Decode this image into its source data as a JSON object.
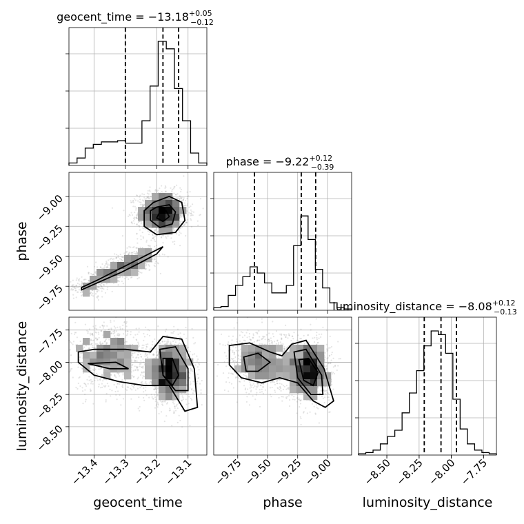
{
  "chart_data": {
    "type": "corner",
    "parameters": [
      {
        "key": "geocent_time",
        "label": "geocent_time",
        "title": {
          "lhs": "geocent_time = ",
          "median": "−13.18",
          "plus": "+0.05",
          "minus": "−0.12"
        },
        "range": [
          -13.48,
          -13.04
        ],
        "ticks": [
          -13.4,
          -13.3,
          -13.2,
          -13.1
        ],
        "tick_labels": [
          "−13.4",
          "−13.3",
          "−13.2",
          "−13.1"
        ],
        "quantiles": [
          -13.3,
          -13.18,
          -13.13
        ],
        "hist": [
          0.02,
          0.06,
          0.14,
          0.17,
          0.19,
          0.19,
          0.2,
          0.18,
          0.18,
          0.36,
          0.64,
          1.0,
          0.94,
          0.62,
          0.36,
          0.1,
          0.02
        ]
      },
      {
        "key": "phase",
        "label": "phase",
        "title": {
          "lhs": "phase = ",
          "median": "−9.22",
          "plus": "+0.12",
          "minus": "−0.39"
        },
        "range": [
          -9.95,
          -8.8
        ],
        "ticks": [
          -9.75,
          -9.5,
          -9.25,
          -9.0
        ],
        "tick_labels": [
          "−9.75",
          "−9.50",
          "−9.25",
          "−9.00"
        ],
        "quantiles": [
          -9.61,
          -9.22,
          -9.1
        ],
        "hist": [
          0.02,
          0.03,
          0.12,
          0.2,
          0.27,
          0.35,
          0.3,
          0.22,
          0.14,
          0.14,
          0.2,
          0.52,
          0.76,
          0.57,
          0.33,
          0.18,
          0.06,
          0.02,
          0.01
        ]
      },
      {
        "key": "luminosity_distance",
        "label": "luminosity_distance",
        "title": {
          "lhs": "luminosity_distance = ",
          "median": "−8.08",
          "plus": "+0.12",
          "minus": "−0.13"
        },
        "range": [
          -8.72,
          -7.65
        ],
        "ticks": [
          -8.5,
          -8.25,
          -8.0,
          -7.75
        ],
        "tick_labels": [
          "−8.50",
          "−8.25",
          "−8.00",
          "−7.75"
        ],
        "quantiles": [
          -8.21,
          -8.08,
          -7.96
        ],
        "hist": [
          0.01,
          0.02,
          0.04,
          0.09,
          0.15,
          0.2,
          0.34,
          0.5,
          0.68,
          0.88,
          1.0,
          0.97,
          0.82,
          0.45,
          0.21,
          0.09,
          0.04,
          0.02,
          0.01
        ]
      }
    ],
    "hist_tick_levels": [
      0.3,
      0.6,
      0.9
    ],
    "pairs": [
      {
        "x": "geocent_time",
        "y": "phase",
        "cloud": [
          {
            "cx": -13.18,
            "cy": -9.14,
            "sx": 0.04,
            "sy": 0.09,
            "n": 1400
          },
          {
            "cx": -13.25,
            "cy": -9.5,
            "sx": 0.03,
            "sy": 0.05,
            "n": 220
          },
          {
            "cx": -13.3,
            "cy": -9.58,
            "sx": 0.03,
            "sy": 0.04,
            "n": 260
          },
          {
            "cx": -13.36,
            "cy": -9.66,
            "sx": 0.03,
            "sy": 0.04,
            "n": 240
          },
          {
            "cx": -13.42,
            "cy": -9.76,
            "sx": 0.03,
            "sy": 0.04,
            "n": 160
          }
        ],
        "contours": [
          [
            [
              -13.21,
              -9.05
            ],
            [
              -13.16,
              -9.0
            ],
            [
              -13.12,
              -9.05
            ],
            [
              -13.11,
              -9.2
            ],
            [
              -13.14,
              -9.3
            ],
            [
              -13.2,
              -9.32
            ],
            [
              -13.24,
              -9.25
            ],
            [
              -13.24,
              -9.12
            ]
          ],
          [
            [
              -13.2,
              -9.09
            ],
            [
              -13.16,
              -9.07
            ],
            [
              -13.14,
              -9.13
            ],
            [
              -13.15,
              -9.23
            ],
            [
              -13.19,
              -9.26
            ],
            [
              -13.22,
              -9.2
            ],
            [
              -13.22,
              -9.12
            ]
          ],
          [
            [
              -13.19,
              -9.13
            ],
            [
              -13.17,
              -9.12
            ],
            [
              -13.16,
              -9.17
            ],
            [
              -13.18,
              -9.21
            ],
            [
              -13.2,
              -9.18
            ]
          ],
          [
            [
              -13.44,
              -9.78
            ],
            [
              -13.38,
              -9.71
            ],
            [
              -13.31,
              -9.63
            ],
            [
              -13.25,
              -9.55
            ],
            [
              -13.2,
              -9.48
            ],
            [
              -13.18,
              -9.42
            ],
            [
              -13.21,
              -9.46
            ],
            [
              -13.27,
              -9.54
            ],
            [
              -13.33,
              -9.62
            ],
            [
              -13.39,
              -9.7
            ],
            [
              -13.44,
              -9.76
            ]
          ]
        ]
      },
      {
        "x": "geocent_time",
        "y": "luminosity_distance",
        "cloud": [
          {
            "cx": -13.16,
            "cy": -8.08,
            "sx": 0.04,
            "sy": 0.12,
            "n": 1200
          },
          {
            "cx": -13.35,
            "cy": -7.96,
            "sx": 0.06,
            "sy": 0.13,
            "n": 900
          }
        ],
        "contours": [
          [
            [
              -13.45,
              -7.92
            ],
            [
              -13.4,
              -7.9
            ],
            [
              -13.3,
              -7.9
            ],
            [
              -13.22,
              -7.92
            ],
            [
              -13.18,
              -7.8
            ],
            [
              -13.12,
              -7.82
            ],
            [
              -13.08,
              -8.05
            ],
            [
              -13.07,
              -8.35
            ],
            [
              -13.11,
              -8.38
            ],
            [
              -13.16,
              -8.18
            ],
            [
              -13.24,
              -8.18
            ],
            [
              -13.32,
              -8.15
            ],
            [
              -13.4,
              -8.1
            ],
            [
              -13.45,
              -8.0
            ]
          ],
          [
            [
              -13.19,
              -7.9
            ],
            [
              -13.14,
              -7.88
            ],
            [
              -13.1,
              -8.05
            ],
            [
              -13.1,
              -8.22
            ],
            [
              -13.14,
              -8.22
            ],
            [
              -13.18,
              -8.1
            ]
          ],
          [
            [
              -13.18,
              -7.97
            ],
            [
              -13.15,
              -7.97
            ],
            [
              -13.13,
              -8.1
            ],
            [
              -13.15,
              -8.18
            ],
            [
              -13.18,
              -8.1
            ]
          ],
          [
            [
              -13.42,
              -8.01
            ],
            [
              -13.33,
              -8.0
            ],
            [
              -13.29,
              -8.05
            ],
            [
              -13.35,
              -8.05
            ]
          ]
        ]
      },
      {
        "x": "phase",
        "y": "luminosity_distance",
        "cloud": [
          {
            "cx": -9.16,
            "cy": -8.06,
            "sx": 0.09,
            "sy": 0.12,
            "n": 1200
          },
          {
            "cx": -9.55,
            "cy": -8.0,
            "sx": 0.14,
            "sy": 0.12,
            "n": 900
          }
        ],
        "contours": [
          [
            [
              -9.82,
              -7.87
            ],
            [
              -9.65,
              -7.85
            ],
            [
              -9.48,
              -7.92
            ],
            [
              -9.38,
              -7.95
            ],
            [
              -9.3,
              -7.86
            ],
            [
              -9.18,
              -7.83
            ],
            [
              -9.03,
              -8.05
            ],
            [
              -8.95,
              -8.3
            ],
            [
              -9.02,
              -8.35
            ],
            [
              -9.12,
              -8.3
            ],
            [
              -9.25,
              -8.16
            ],
            [
              -9.4,
              -8.12
            ],
            [
              -9.55,
              -8.16
            ],
            [
              -9.72,
              -8.12
            ],
            [
              -9.82,
              -8.02
            ]
          ],
          [
            [
              -9.28,
              -7.92
            ],
            [
              -9.18,
              -7.9
            ],
            [
              -9.05,
              -8.1
            ],
            [
              -9.04,
              -8.25
            ],
            [
              -9.14,
              -8.25
            ],
            [
              -9.25,
              -8.12
            ]
          ],
          [
            [
              -9.7,
              -7.96
            ],
            [
              -9.58,
              -7.93
            ],
            [
              -9.48,
              -8.0
            ],
            [
              -9.58,
              -8.07
            ],
            [
              -9.68,
              -8.07
            ]
          ],
          [
            [
              -9.24,
              -7.98
            ],
            [
              -9.16,
              -7.97
            ],
            [
              -9.08,
              -8.08
            ],
            [
              -9.12,
              -8.18
            ],
            [
              -9.2,
              -8.14
            ]
          ]
        ]
      }
    ]
  }
}
